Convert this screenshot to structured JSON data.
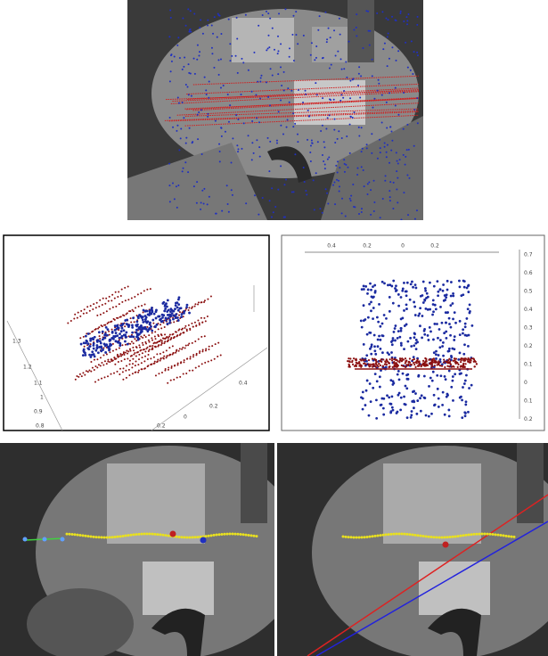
{
  "panels": {
    "left_plot": {
      "axis_labels": [
        "1.3",
        "1.2",
        "1.1",
        "1",
        "0.9",
        "0.8",
        "0.4",
        "0.2",
        "0",
        "0.2"
      ]
    },
    "right_plot": {
      "top_axis_labels": [
        "0.4",
        "0.2",
        "0",
        "0.2"
      ],
      "right_axis_labels": [
        "0.7",
        "0.6",
        "0.5",
        "0.4",
        "0.3",
        "0.2",
        "0.1",
        "0",
        "0.1",
        "0.2"
      ]
    }
  }
}
